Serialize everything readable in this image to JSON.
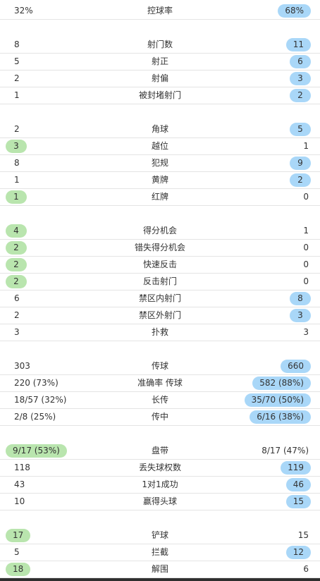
{
  "rows": [
    {
      "left": "32%",
      "label": "控球率",
      "right": "68%",
      "hl": "right"
    },
    {
      "left": "8",
      "label": "射门数",
      "right": "11",
      "hl": "right"
    },
    {
      "left": "5",
      "label": "射正",
      "right": "6",
      "hl": "right"
    },
    {
      "left": "2",
      "label": "射偏",
      "right": "3",
      "hl": "right"
    },
    {
      "left": "1",
      "label": "被封堵射门",
      "right": "2",
      "hl": "right"
    },
    {
      "left": "2",
      "label": "角球",
      "right": "5",
      "hl": "right"
    },
    {
      "left": "3",
      "label": "越位",
      "right": "1",
      "hl": "left"
    },
    {
      "left": "8",
      "label": "犯规",
      "right": "9",
      "hl": "right"
    },
    {
      "left": "1",
      "label": "黄牌",
      "right": "2",
      "hl": "right"
    },
    {
      "left": "1",
      "label": "红牌",
      "right": "0",
      "hl": "left"
    },
    {
      "left": "4",
      "label": "得分机会",
      "right": "1",
      "hl": "left"
    },
    {
      "left": "2",
      "label": "错失得分机会",
      "right": "0",
      "hl": "left"
    },
    {
      "left": "2",
      "label": "快速反击",
      "right": "0",
      "hl": "left"
    },
    {
      "left": "2",
      "label": "反击射门",
      "right": "0",
      "hl": "left"
    },
    {
      "left": "6",
      "label": "禁区内射门",
      "right": "8",
      "hl": "right"
    },
    {
      "left": "2",
      "label": "禁区外射门",
      "right": "3",
      "hl": "right"
    },
    {
      "left": "3",
      "label": "扑救",
      "right": "3",
      "hl": "none"
    },
    {
      "left": "303",
      "label": "传球",
      "right": "660",
      "hl": "right"
    },
    {
      "left": "220 (73%)",
      "label": "准确率 传球",
      "right": "582 (88%)",
      "hl": "right"
    },
    {
      "left": "18/57 (32%)",
      "label": "长传",
      "right": "35/70 (50%)",
      "hl": "right"
    },
    {
      "left": "2/8 (25%)",
      "label": "传中",
      "right": "6/16 (38%)",
      "hl": "right"
    },
    {
      "left": "9/17 (53%)",
      "label": "盘带",
      "right": "8/17 (47%)",
      "hl": "left"
    },
    {
      "left": "118",
      "label": "丢失球权数",
      "right": "119",
      "hl": "right"
    },
    {
      "left": "43",
      "label": "1对1成功",
      "right": "46",
      "hl": "right"
    },
    {
      "left": "10",
      "label": "赢得头球",
      "right": "15",
      "hl": "right"
    },
    {
      "left": "17",
      "label": "铲球",
      "right": "15",
      "hl": "left"
    },
    {
      "left": "5",
      "label": "拦截",
      "right": "12",
      "hl": "right"
    },
    {
      "left": "18",
      "label": "解围",
      "right": "6",
      "hl": "left"
    }
  ],
  "colors": {
    "highlight_left": "#b9e5ae",
    "highlight_right": "#a9d7f8",
    "divider": "#e4e4e4",
    "text": "#333333"
  }
}
